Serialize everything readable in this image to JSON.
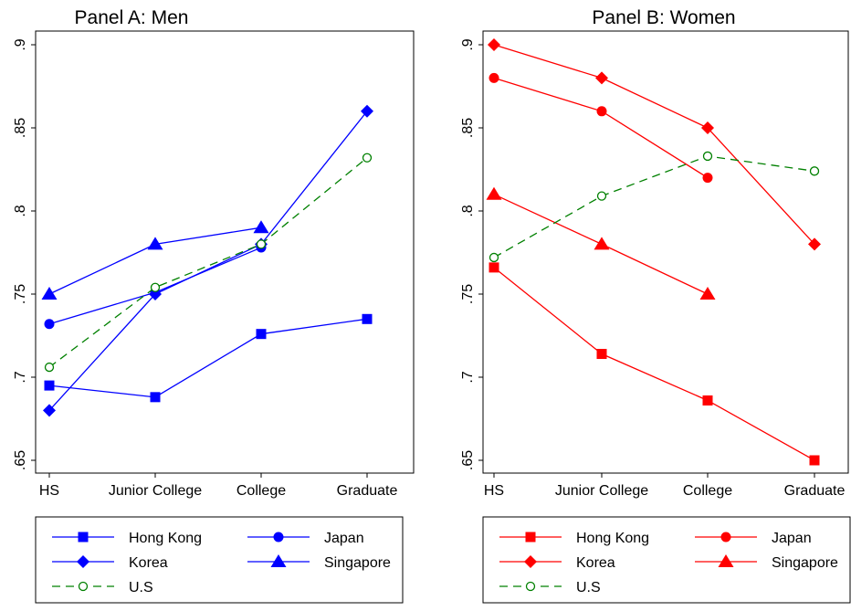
{
  "chart_data": [
    {
      "type": "line",
      "title": "Panel A: Men",
      "categories": [
        "HS",
        "Junior College",
        "College",
        "Graduate"
      ],
      "ylim": [
        0.65,
        0.9
      ],
      "yticks": [
        0.65,
        0.7,
        0.75,
        0.8,
        0.85,
        0.9
      ],
      "ytick_labels": [
        ".65",
        ".7",
        ".75",
        ".8",
        ".85",
        ".9"
      ],
      "grid": false,
      "legend_position": "bottom",
      "series": [
        {
          "name": "Hong Kong",
          "color": "#0000ff",
          "marker": "square",
          "dash": false,
          "values": [
            0.695,
            0.688,
            0.726,
            0.735
          ]
        },
        {
          "name": "Japan",
          "color": "#0000ff",
          "marker": "circle",
          "dash": false,
          "values": [
            0.732,
            0.751,
            0.778,
            null
          ]
        },
        {
          "name": "Korea",
          "color": "#0000ff",
          "marker": "diamond",
          "dash": false,
          "values": [
            0.68,
            0.75,
            0.78,
            0.86
          ]
        },
        {
          "name": "Singapore",
          "color": "#0000ff",
          "marker": "triangle",
          "dash": false,
          "values": [
            0.75,
            0.78,
            0.79,
            null
          ]
        },
        {
          "name": "U.S",
          "color": "#008000",
          "marker": "hollow-circle",
          "dash": true,
          "values": [
            0.706,
            0.754,
            0.78,
            0.832
          ]
        }
      ]
    },
    {
      "type": "line",
      "title": "Panel B: Women",
      "categories": [
        "HS",
        "Junior College",
        "College",
        "Graduate"
      ],
      "ylim": [
        0.65,
        0.9
      ],
      "yticks": [
        0.65,
        0.7,
        0.75,
        0.8,
        0.85,
        0.9
      ],
      "ytick_labels": [
        ".65",
        ".7",
        ".75",
        ".8",
        ".85",
        ".9"
      ],
      "grid": false,
      "legend_position": "bottom",
      "series": [
        {
          "name": "Hong Kong",
          "color": "#ff0000",
          "marker": "square",
          "dash": false,
          "values": [
            0.766,
            0.714,
            0.686,
            0.65
          ]
        },
        {
          "name": "Japan",
          "color": "#ff0000",
          "marker": "circle",
          "dash": false,
          "values": [
            0.88,
            0.86,
            0.82,
            null
          ]
        },
        {
          "name": "Korea",
          "color": "#ff0000",
          "marker": "diamond",
          "dash": false,
          "values": [
            0.9,
            0.88,
            0.85,
            0.78
          ]
        },
        {
          "name": "Singapore",
          "color": "#ff0000",
          "marker": "triangle",
          "dash": false,
          "values": [
            0.81,
            0.78,
            0.75,
            null
          ]
        },
        {
          "name": "U.S",
          "color": "#008000",
          "marker": "hollow-circle",
          "dash": true,
          "values": [
            0.772,
            0.809,
            0.833,
            0.824
          ]
        }
      ]
    }
  ]
}
